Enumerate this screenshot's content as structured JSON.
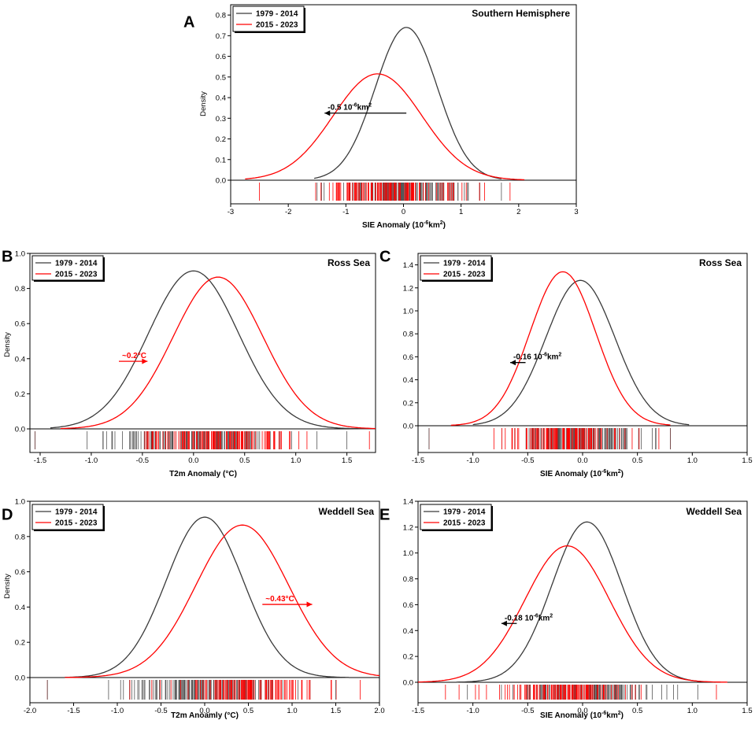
{
  "figure": {
    "background": "#ffffff",
    "colors": {
      "baseline": "#3a3a3a",
      "recent": "#ff0000"
    }
  },
  "chart_data": [
    {
      "type": "line",
      "panel_letter": "A",
      "title": "Southern Hemisphere",
      "xlabel": "SIE Anomaly (10",
      "xlabel_sup": "-6",
      "xlabel_tail": "km",
      "xlabel_sup2": "2",
      "xlabel_end": ")",
      "ylabel": "Density",
      "xlim": [
        -3,
        3
      ],
      "ylim": [
        -0.13,
        0.85
      ],
      "xticks": [
        -3,
        -2,
        -1,
        0,
        1,
        2,
        3
      ],
      "yticks": [
        0.0,
        0.1,
        0.2,
        0.3,
        0.4,
        0.5,
        0.6,
        0.7,
        0.8
      ],
      "legend": [
        "1979 - 2014",
        "2015 - 2023"
      ],
      "series": [
        {
          "name": "1979 - 2014",
          "color": "#3a3a3a",
          "mean": 0.05,
          "sd": 0.54,
          "peak": 0.74,
          "range": [
            -1.55,
            1.7
          ]
        },
        {
          "name": "2015 - 2023",
          "color": "#ff0000",
          "mean": -0.45,
          "sd": 0.77,
          "peak": 0.515,
          "range": [
            -2.75,
            2.1
          ]
        }
      ],
      "annotation": {
        "text": "-0.5 10",
        "sup": "-6",
        "tail": "km",
        "sup2": "2",
        "color": "#000000",
        "from": 0.05,
        "to": -1.37,
        "y": 0.325
      },
      "rug": {
        "range": [
          -2.5,
          1.85
        ],
        "gray_range": [
          -1.5,
          1.7
        ]
      }
    },
    {
      "type": "line",
      "panel_letter": "B",
      "title": "Ross Sea",
      "xlabel": "T2m Anomaly (°C)",
      "ylabel": "Density",
      "xlim": [
        -1.6,
        1.78
      ],
      "ylim": [
        -0.14,
        1.0
      ],
      "xticks": [
        -1.5,
        -1.0,
        -0.5,
        0.0,
        0.5,
        1.0,
        1.5
      ],
      "yticks": [
        0.0,
        0.2,
        0.4,
        0.6,
        0.8,
        1.0
      ],
      "legend": [
        "1979 - 2014",
        "2015 - 2023"
      ],
      "series": [
        {
          "name": "1979 - 2014",
          "color": "#3a3a3a",
          "mean": 0.0,
          "sd": 0.44,
          "peak": 0.9,
          "range": [
            -1.4,
            1.78
          ]
        },
        {
          "name": "2015 - 2023",
          "color": "#ff0000",
          "mean": 0.24,
          "sd": 0.44,
          "peak": 0.865,
          "range": [
            -1.3,
            1.78
          ]
        }
      ],
      "annotation": {
        "text": "~0.2°C",
        "color": "#ff0000",
        "from": -0.73,
        "to": -0.45,
        "y": 0.385
      },
      "rug": {
        "range": [
          -1.55,
          1.72
        ],
        "gray_range": [
          -1.55,
          1.5
        ]
      }
    },
    {
      "type": "line",
      "panel_letter": "C",
      "title": "Ross Sea",
      "xlabel": "SIE Anomaly (10",
      "xlabel_sup": "-6",
      "xlabel_tail": "km",
      "xlabel_sup2": "2",
      "xlabel_end": ")",
      "ylabel": "",
      "xlim": [
        -1.5,
        1.5
      ],
      "ylim": [
        -0.2,
        1.5
      ],
      "xticks": [
        -1.5,
        -1.0,
        -0.5,
        0.0,
        0.5,
        1.0,
        1.5
      ],
      "yticks": [
        0.0,
        0.2,
        0.4,
        0.6,
        0.8,
        1.0,
        1.2,
        1.4
      ],
      "legend": [
        "1979 - 2014",
        "2015 - 2023"
      ],
      "series": [
        {
          "name": "1979 - 2014",
          "color": "#3a3a3a",
          "mean": -0.02,
          "sd": 0.315,
          "peak": 1.265,
          "range": [
            -1.0,
            0.97
          ]
        },
        {
          "name": "2015 - 2023",
          "color": "#ff0000",
          "mean": -0.18,
          "sd": 0.3,
          "peak": 1.34,
          "range": [
            -1.2,
            0.8
          ]
        }
      ],
      "annotation": {
        "text": "-0.16 10",
        "sup": "-6",
        "tail": "km",
        "sup2": "2",
        "color": "#000000",
        "from": -0.52,
        "to": -0.66,
        "y": 0.55
      },
      "rug": {
        "range": [
          -1.4,
          0.8
        ],
        "gray_range": [
          -1.4,
          0.8
        ]
      }
    },
    {
      "type": "line",
      "panel_letter": "D",
      "title": "Weddell Sea",
      "xlabel": "T2m Anoamly (°C)",
      "ylabel": "Density",
      "xlim": [
        -2.0,
        2.0
      ],
      "ylim": [
        -0.14,
        1.0
      ],
      "xticks": [
        -2.0,
        -1.5,
        -1.0,
        -0.5,
        0.0,
        0.5,
        1.0,
        1.5,
        2.0
      ],
      "yticks": [
        0.0,
        0.2,
        0.4,
        0.6,
        0.8,
        1.0
      ],
      "legend": [
        "1979 - 2014",
        "2015 - 2023"
      ],
      "series": [
        {
          "name": "1979 - 2014",
          "color": "#3a3a3a",
          "mean": 0.0,
          "sd": 0.44,
          "peak": 0.91,
          "range": [
            -1.6,
            1.65
          ]
        },
        {
          "name": "2015 - 2023",
          "color": "#ff0000",
          "mean": 0.43,
          "sd": 0.53,
          "peak": 0.865,
          "range": [
            -1.6,
            2.0
          ]
        }
      ],
      "annotation": {
        "text": "~0.43°C",
        "color": "#ff0000",
        "from": 0.66,
        "to": 1.23,
        "y": 0.415
      },
      "rug": {
        "range": [
          -1.8,
          1.78
        ],
        "gray_range": [
          -1.8,
          1.5
        ]
      }
    },
    {
      "type": "line",
      "panel_letter": "E",
      "title": "Weddell Sea",
      "xlabel": "SIE Anomaly (10",
      "xlabel_sup": "-6",
      "xlabel_tail": "km",
      "xlabel_sup2": "2",
      "xlabel_end": ")",
      "ylabel": "",
      "xlim": [
        -1.5,
        1.5
      ],
      "ylim": [
        -0.2,
        1.4
      ],
      "xticks": [
        -1.5,
        -1.0,
        -0.5,
        0.0,
        0.5,
        1.0,
        1.5
      ],
      "yticks": [
        0.0,
        0.2,
        0.4,
        0.6,
        0.8,
        1.0,
        1.2,
        1.4
      ],
      "legend": [
        "1979 - 2014",
        "2015 - 2023"
      ],
      "series": [
        {
          "name": "1979 - 2014",
          "color": "#3a3a3a",
          "mean": 0.04,
          "sd": 0.32,
          "peak": 1.24,
          "range": [
            -1.15,
            1.2
          ]
        },
        {
          "name": "2015 - 2023",
          "color": "#ff0000",
          "mean": -0.14,
          "sd": 0.385,
          "peak": 1.055,
          "range": [
            -1.5,
            1.32
          ]
        }
      ],
      "annotation": {
        "text": "-0.18 10",
        "sup": "-6",
        "tail": "km",
        "sup2": "2",
        "color": "#000000",
        "from": -0.6,
        "to": -0.74,
        "y": 0.455
      },
      "rug": {
        "range": [
          -1.25,
          1.22
        ],
        "gray_range": [
          -1.05,
          1.05
        ]
      }
    }
  ]
}
